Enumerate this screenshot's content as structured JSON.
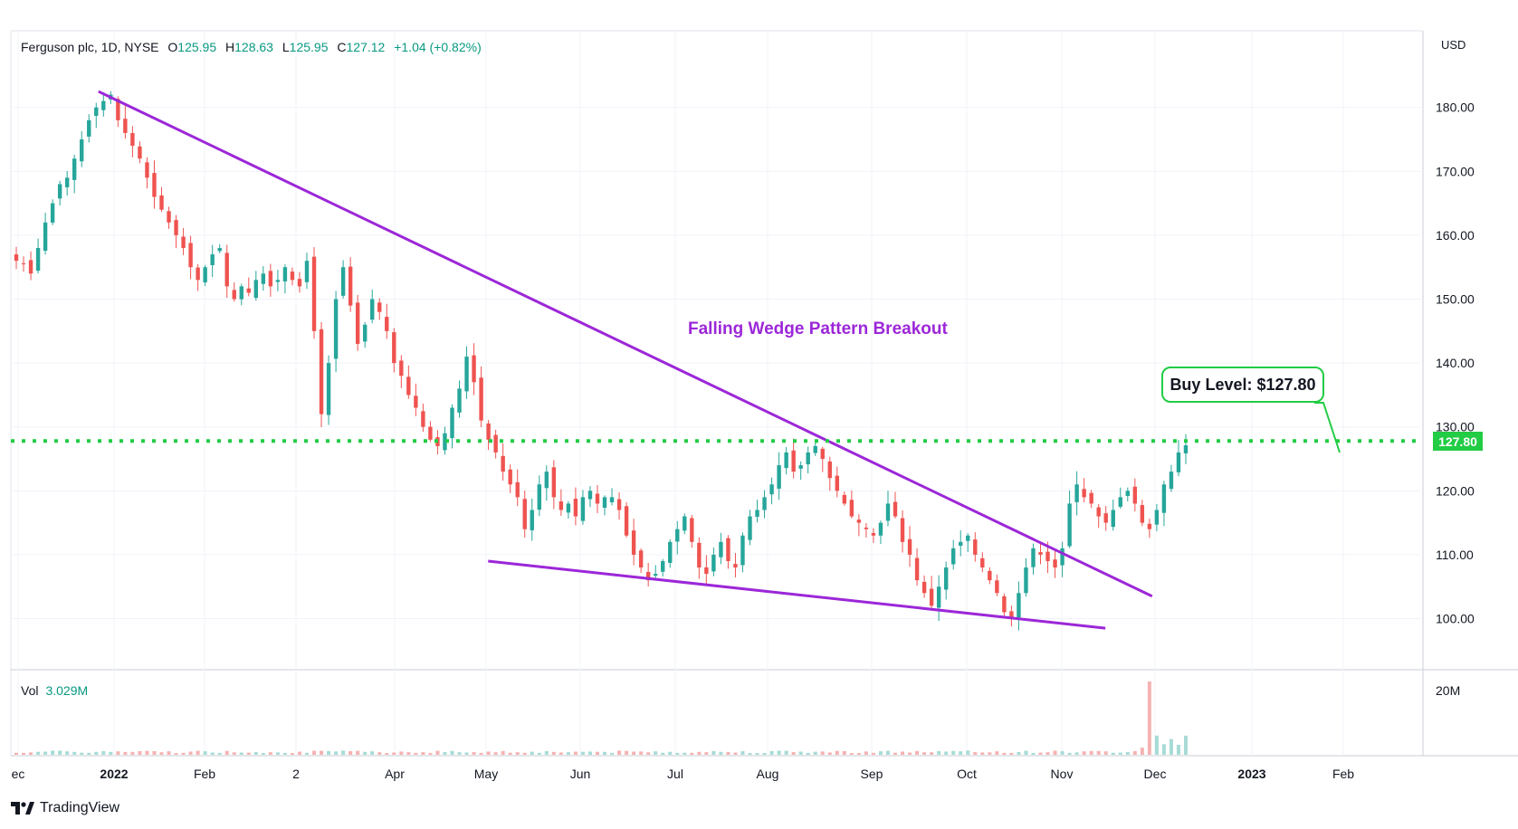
{
  "header": {
    "symbol": "Ferguson plc, 1D, NYSE",
    "open_label": "O",
    "open": "125.95",
    "high_label": "H",
    "high": "128.63",
    "low_label": "L",
    "low": "125.95",
    "close_label": "C",
    "close": "127.12",
    "change": "+1.04 (+0.82%)"
  },
  "currency": "USD",
  "volume": {
    "label": "Vol",
    "value": "3.029M",
    "axis_label": "20M"
  },
  "annotations": {
    "pattern_label": "Falling Wedge Pattern Breakout",
    "buy_level_label": "Buy Level: $127.80",
    "price_tag": "127.80"
  },
  "branding": {
    "name": "TradingView"
  },
  "colors": {
    "up": "#26a69a",
    "down": "#ef5350",
    "wedge": "#9c27d8",
    "buy_line": "#22cc44"
  },
  "chart_data": {
    "type": "candlestick",
    "title": "Ferguson plc, 1D, NYSE",
    "ylim": [
      92,
      192
    ],
    "y_ticks": [
      "100.00",
      "110.00",
      "120.00",
      "130.00",
      "140.00",
      "150.00",
      "160.00",
      "170.00",
      "180.00"
    ],
    "x_ticks": [
      "ec",
      "2022",
      "Feb",
      "2",
      "Apr",
      "May",
      "Jun",
      "Jul",
      "Aug",
      "Sep",
      "Oct",
      "Nov",
      "Dec",
      "2023",
      "Feb"
    ],
    "buy_level": 127.8,
    "wedge_upper": [
      {
        "date": "2021-12-27",
        "price": 182.5
      },
      {
        "date": "2022-11-30",
        "price": 103.5
      }
    ],
    "wedge_lower": [
      {
        "date": "2022-05-01",
        "price": 109.0
      },
      {
        "date": "2022-11-15",
        "price": 98.5
      }
    ],
    "series": [
      {
        "closes": [
          156,
          155.5,
          154,
          158,
          162,
          165,
          168,
          169,
          172,
          175,
          178,
          180,
          181,
          182,
          178,
          176,
          174,
          172,
          169,
          166,
          164,
          162,
          160,
          158,
          155,
          153,
          155,
          157,
          158,
          152,
          150,
          152,
          151,
          153,
          154,
          152,
          153,
          155,
          153,
          152,
          156,
          145,
          132,
          140,
          150,
          155,
          149,
          143,
          146,
          150,
          148,
          145,
          140,
          138,
          135,
          133,
          130,
          128,
          127,
          129,
          133,
          136,
          141,
          137,
          131,
          128,
          126,
          123,
          121,
          119,
          114,
          117,
          121,
          123,
          119,
          117,
          118,
          116,
          119,
          120,
          118,
          119,
          119,
          117,
          113,
          110,
          108,
          106,
          107,
          109,
          112,
          114,
          116,
          112,
          108,
          107,
          110,
          112,
          109,
          108,
          113,
          116,
          117,
          119,
          121,
          124,
          126,
          123,
          124,
          126,
          127,
          125,
          122,
          120,
          118,
          116,
          115,
          114,
          113,
          115,
          118,
          116,
          112,
          110,
          106,
          104,
          102,
          105,
          108,
          111,
          112,
          113,
          110,
          108,
          106,
          104,
          101,
          100,
          104,
          108,
          111,
          110,
          109,
          108,
          111,
          118,
          121,
          119,
          118,
          116,
          115,
          117,
          119,
          120,
          118,
          115,
          114,
          117,
          121,
          123,
          126,
          127.12
        ]
      }
    ],
    "volume": {
      "unit": "M",
      "spike_peak": 20.5,
      "typical": 0.8
    }
  }
}
